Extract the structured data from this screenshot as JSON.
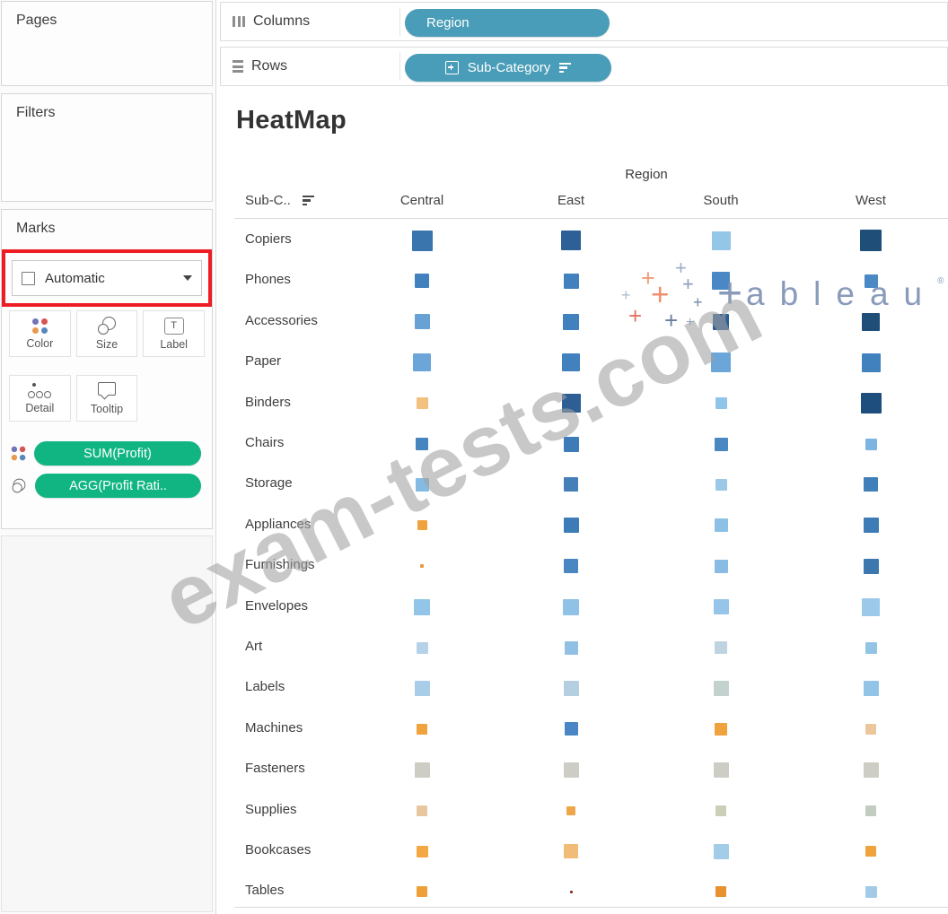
{
  "left_panel": {
    "pages": {
      "label": "Pages"
    },
    "filters": {
      "label": "Filters"
    },
    "marks": {
      "label": "Marks",
      "mark_type_dropdown": {
        "value": "Automatic"
      },
      "highlight_color": "#ee1c23",
      "buttons": [
        {
          "id": "color",
          "label": "Color"
        },
        {
          "id": "size",
          "label": "Size"
        },
        {
          "id": "label",
          "label": "Label"
        },
        {
          "id": "detail",
          "label": "Detail"
        },
        {
          "id": "tooltip",
          "label": "Tooltip"
        }
      ],
      "pills": [
        {
          "icon": "color-dots-icon",
          "label": "SUM(Profit)"
        },
        {
          "icon": "size-circles-icon",
          "label": "AGG(Profit Rati.."
        }
      ],
      "pill_color": "#10b582"
    }
  },
  "shelves": {
    "pill_color": "#4a9db8",
    "columns": {
      "label": "Columns",
      "pill": "Region"
    },
    "rows": {
      "label": "Rows",
      "pill": "Sub-Category"
    }
  },
  "sheet": {
    "title": "HeatMap",
    "column_dimension_label": "Region",
    "row_field_header": "Sub-C.."
  },
  "watermarks": {
    "diagonal_text": "exam-tests.com",
    "logo_letters": "ableau",
    "logo_registered": "®"
  },
  "chart_data": {
    "type": "heatmap",
    "title": "HeatMap",
    "column_dimension": "Region",
    "row_dimension": "Sub-Category",
    "encoding": {
      "color": "SUM(Profit)",
      "size": "AGG(Profit Ratio)"
    },
    "columns": [
      "Central",
      "East",
      "South",
      "West"
    ],
    "rows": [
      {
        "label": "Copiers",
        "cells": [
          {
            "color": "#3a76ad",
            "size": 23
          },
          {
            "color": "#2d6096",
            "size": 22
          },
          {
            "color": "#94c6e7",
            "size": 21
          },
          {
            "color": "#1f4e79",
            "size": 24
          }
        ]
      },
      {
        "label": "Phones",
        "cells": [
          {
            "color": "#4181bd",
            "size": 16
          },
          {
            "color": "#4181bd",
            "size": 17
          },
          {
            "color": "#4988c4",
            "size": 20
          },
          {
            "color": "#4b89c4",
            "size": 15
          }
        ]
      },
      {
        "label": "Accessories",
        "cells": [
          {
            "color": "#68a2d4",
            "size": 17
          },
          {
            "color": "#4181bd",
            "size": 18
          },
          {
            "color": "#2b5e93",
            "size": 18
          },
          {
            "color": "#1f4e79",
            "size": 20
          }
        ]
      },
      {
        "label": "Paper",
        "cells": [
          {
            "color": "#6ca6d8",
            "size": 20
          },
          {
            "color": "#4181bd",
            "size": 20
          },
          {
            "color": "#6ca6d8",
            "size": 22
          },
          {
            "color": "#4181bd",
            "size": 21
          }
        ]
      },
      {
        "label": "Binders",
        "cells": [
          {
            "color": "#f2c180",
            "size": 13
          },
          {
            "color": "#2d5f95",
            "size": 21
          },
          {
            "color": "#90c4e8",
            "size": 13
          },
          {
            "color": "#1d4e7e",
            "size": 23
          }
        ]
      },
      {
        "label": "Chairs",
        "cells": [
          {
            "color": "#4785c0",
            "size": 14
          },
          {
            "color": "#3e7cb8",
            "size": 17
          },
          {
            "color": "#4a88c2",
            "size": 15
          },
          {
            "color": "#7db4e0",
            "size": 13
          }
        ]
      },
      {
        "label": "Storage",
        "cells": [
          {
            "color": "#85bbe2",
            "size": 15
          },
          {
            "color": "#457fb8",
            "size": 16
          },
          {
            "color": "#9cc8e8",
            "size": 13
          },
          {
            "color": "#4080ba",
            "size": 16
          }
        ]
      },
      {
        "label": "Appliances",
        "cells": [
          {
            "color": "#f0a23c",
            "size": 11
          },
          {
            "color": "#3e7cb8",
            "size": 17
          },
          {
            "color": "#8cc0e5",
            "size": 15
          },
          {
            "color": "#3e7cb8",
            "size": 17
          }
        ]
      },
      {
        "label": "Furnishings",
        "cells": [
          {
            "color": "#e89b40",
            "size": 4
          },
          {
            "color": "#4a87c2",
            "size": 16
          },
          {
            "color": "#88bce4",
            "size": 15
          },
          {
            "color": "#3c77ae",
            "size": 17
          }
        ]
      },
      {
        "label": "Envelopes",
        "cells": [
          {
            "color": "#92c5e8",
            "size": 18
          },
          {
            "color": "#8fc2e6",
            "size": 18
          },
          {
            "color": "#95c5e8",
            "size": 17
          },
          {
            "color": "#9cc9ea",
            "size": 20
          }
        ]
      },
      {
        "label": "Art",
        "cells": [
          {
            "color": "#b5d2e8",
            "size": 13
          },
          {
            "color": "#90c0e4",
            "size": 15
          },
          {
            "color": "#bfd4e0",
            "size": 14
          },
          {
            "color": "#93c4e6",
            "size": 13
          }
        ]
      },
      {
        "label": "Labels",
        "cells": [
          {
            "color": "#a7cde8",
            "size": 17
          },
          {
            "color": "#b4cfe0",
            "size": 17
          },
          {
            "color": "#c4d2cf",
            "size": 17
          },
          {
            "color": "#92c4e8",
            "size": 17
          }
        ]
      },
      {
        "label": "Machines",
        "cells": [
          {
            "color": "#f0a23c",
            "size": 12
          },
          {
            "color": "#4a86c4",
            "size": 15
          },
          {
            "color": "#f0a23c",
            "size": 14
          },
          {
            "color": "#ecc79b",
            "size": 12
          }
        ]
      },
      {
        "label": "Fasteners",
        "cells": [
          {
            "color": "#cdcdc5",
            "size": 17
          },
          {
            "color": "#cdcdc5",
            "size": 17
          },
          {
            "color": "#cdcdc5",
            "size": 17
          },
          {
            "color": "#cdcdc5",
            "size": 17
          }
        ]
      },
      {
        "label": "Supplies",
        "cells": [
          {
            "color": "#e8c79e",
            "size": 12
          },
          {
            "color": "#eda64a",
            "size": 10
          },
          {
            "color": "#ccceb8",
            "size": 12
          },
          {
            "color": "#c2ccc0",
            "size": 12
          }
        ]
      },
      {
        "label": "Bookcases",
        "cells": [
          {
            "color": "#f2a944",
            "size": 13
          },
          {
            "color": "#f0bc78",
            "size": 16
          },
          {
            "color": "#a3cce8",
            "size": 17
          },
          {
            "color": "#f0a23c",
            "size": 12
          }
        ]
      },
      {
        "label": "Tables",
        "cells": [
          {
            "color": "#eda03a",
            "size": 12
          },
          {
            "color": "#8b2f20",
            "size": 3
          },
          {
            "color": "#e8912d",
            "size": 12
          },
          {
            "color": "#a3cbe8",
            "size": 13
          }
        ]
      }
    ]
  }
}
